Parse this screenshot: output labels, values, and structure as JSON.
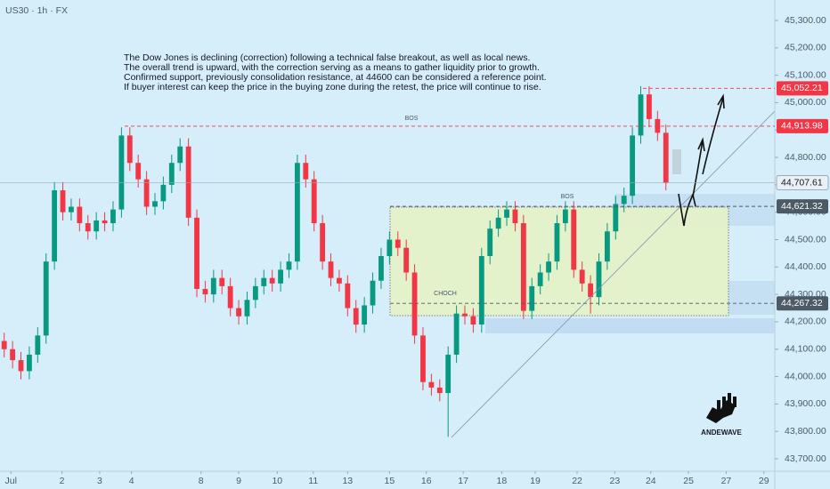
{
  "chart_data": {
    "type": "candlestick",
    "symbol": "US30 · 1h · FX",
    "annotation": [
      "The Dow Jones is declining (correction) following a technical false breakout, as well as local news.",
      "The overall trend is upward, with the correction serving as a means to gather liquidity prior to growth.",
      "Confirmed support, previously consolidation resistance, at 44600 can be considered a reference point.",
      "If buyer interest can keep the price in the buying zone during the retest, the price will continue to rise."
    ],
    "markers": [
      "BOS",
      "BOS",
      "CHOCH"
    ],
    "brand": "ANDEWAVE",
    "up_color": "#089981",
    "down_color": "#f23645",
    "x": [
      0,
      1,
      2,
      3,
      4,
      5,
      6,
      7,
      8,
      9,
      10,
      11,
      12,
      13,
      14,
      15,
      16,
      17,
      18,
      19,
      20,
      21,
      22,
      23,
      24,
      25,
      26,
      27,
      28,
      29,
      30,
      31,
      32,
      33,
      34,
      35,
      36,
      37,
      38,
      39,
      40,
      41,
      42,
      43,
      44,
      45,
      46,
      47,
      48,
      49,
      50,
      51,
      52,
      53,
      54,
      55,
      56,
      57,
      58,
      59,
      60,
      61,
      62,
      63,
      64,
      65,
      66,
      67,
      68,
      69,
      70,
      71,
      72,
      73,
      74,
      75,
      76,
      77,
      78,
      79
    ],
    "open": [
      44130,
      44100,
      44060,
      44020,
      44080,
      44150,
      44420,
      44680,
      44600,
      44620,
      44560,
      44530,
      44570,
      44560,
      44610,
      44880,
      44780,
      44720,
      44620,
      44640,
      44700,
      44780,
      44840,
      44580,
      44320,
      44300,
      44360,
      44330,
      44250,
      44220,
      44280,
      44330,
      44360,
      44340,
      44390,
      44420,
      44780,
      44720,
      44560,
      44420,
      44360,
      44340,
      44250,
      44190,
      44260,
      44350,
      44440,
      44500,
      44470,
      44380,
      44150,
      43980,
      43960,
      43940,
      44080,
      44230,
      44220,
      44190,
      44440,
      44540,
      44580,
      44610,
      44560,
      44240,
      44330,
      44380,
      44420,
      44560,
      44610,
      44390,
      44340,
      44290,
      44420,
      44530,
      44630,
      44660,
      44880,
      45030,
      44940,
      44890
    ],
    "high": [
      44160,
      44130,
      44090,
      44110,
      44180,
      44450,
      44710,
      44710,
      44650,
      44650,
      44590,
      44600,
      44600,
      44640,
      44910,
      44910,
      44810,
      44750,
      44670,
      44730,
      44810,
      44870,
      44870,
      44610,
      44350,
      44390,
      44390,
      44360,
      44280,
      44310,
      44360,
      44390,
      44390,
      44420,
      44450,
      44810,
      44810,
      44750,
      44590,
      44450,
      44390,
      44370,
      44280,
      44290,
      44380,
      44470,
      44530,
      44530,
      44500,
      44410,
      44180,
      44010,
      43990,
      44110,
      44260,
      44260,
      44250,
      44470,
      44570,
      44610,
      44640,
      44640,
      44590,
      44360,
      44410,
      44450,
      44590,
      44640,
      44640,
      44420,
      44370,
      44450,
      44560,
      44660,
      44690,
      44910,
      45060,
      45060,
      44970,
      44920
    ],
    "low": [
      44070,
      44030,
      43990,
      43990,
      44050,
      44120,
      44390,
      44570,
      44570,
      44530,
      44500,
      44500,
      44530,
      44530,
      44580,
      44750,
      44690,
      44590,
      44590,
      44610,
      44670,
      44750,
      44550,
      44290,
      44270,
      44270,
      44300,
      44220,
      44190,
      44190,
      44250,
      44300,
      44310,
      44310,
      44360,
      44390,
      44690,
      44530,
      44390,
      44330,
      44310,
      44220,
      44160,
      44160,
      44230,
      44320,
      44410,
      44440,
      44350,
      44120,
      43950,
      43930,
      43910,
      43780,
      44050,
      44190,
      44160,
      44160,
      44410,
      44510,
      44550,
      44530,
      44210,
      44210,
      44300,
      44350,
      44390,
      44530,
      44360,
      44310,
      44230,
      44260,
      44390,
      44500,
      44600,
      44630,
      44850,
      44910,
      44860,
      44680
    ],
    "close": [
      44100,
      44060,
      44020,
      44080,
      44150,
      44420,
      44680,
      44600,
      44620,
      44560,
      44530,
      44570,
      44560,
      44610,
      44880,
      44780,
      44720,
      44620,
      44640,
      44700,
      44780,
      44840,
      44580,
      44320,
      44300,
      44360,
      44330,
      44250,
      44220,
      44280,
      44330,
      44360,
      44340,
      44390,
      44420,
      44780,
      44720,
      44560,
      44420,
      44360,
      44340,
      44250,
      44190,
      44260,
      44350,
      44440,
      44500,
      44470,
      44380,
      44150,
      43980,
      43960,
      43940,
      44080,
      44230,
      44220,
      44190,
      44440,
      44540,
      44580,
      44610,
      44560,
      44240,
      44330,
      44380,
      44420,
      44560,
      44610,
      44390,
      44340,
      44290,
      44420,
      44530,
      44630,
      44660,
      44880,
      45030,
      44940,
      44890,
      44707.61
    ],
    "xlim": [
      -0.5,
      92
    ],
    "xticks": [
      {
        "value": 0.8,
        "label": "Jul"
      },
      {
        "value": 6.9,
        "label": "2"
      },
      {
        "value": 11.4,
        "label": "3"
      },
      {
        "value": 15.2,
        "label": "4"
      },
      {
        "value": 23.5,
        "label": "8"
      },
      {
        "value": 28.0,
        "label": "9"
      },
      {
        "value": 32.6,
        "label": "10"
      },
      {
        "value": 36.9,
        "label": "11"
      },
      {
        "value": 41.0,
        "label": "13"
      },
      {
        "value": 46.0,
        "label": "15"
      },
      {
        "value": 50.4,
        "label": "16"
      },
      {
        "value": 54.8,
        "label": "17"
      },
      {
        "value": 59.4,
        "label": "18"
      },
      {
        "value": 63.4,
        "label": "19"
      },
      {
        "value": 68.4,
        "label": "22"
      },
      {
        "value": 72.9,
        "label": "23"
      },
      {
        "value": 77.2,
        "label": "24"
      },
      {
        "value": 81.7,
        "label": "25"
      },
      {
        "value": 86.2,
        "label": "27"
      },
      {
        "value": 90.7,
        "label": "29"
      }
    ],
    "ylim": [
      43654.6,
      45374.6
    ],
    "yticks": [
      {
        "value": 43700,
        "label": "43,700.00"
      },
      {
        "value": 43800,
        "label": "43,800.00"
      },
      {
        "value": 43900,
        "label": "43,900.00"
      },
      {
        "value": 44000,
        "label": "44,000.00"
      },
      {
        "value": 44100,
        "label": "44,100.00"
      },
      {
        "value": 44200,
        "label": "44,200.00"
      },
      {
        "value": 44300,
        "label": "44,300.00"
      },
      {
        "value": 44400,
        "label": "44,400.00"
      },
      {
        "value": 44500,
        "label": "44,500.00"
      },
      {
        "value": 44600,
        "label": "44,600.00"
      },
      {
        "value": 44700,
        "label": "44,700.00"
      },
      {
        "value": 44800,
        "label": "44,800.00"
      },
      {
        "value": 44900,
        "label": "44,900.00"
      },
      {
        "value": 45000,
        "label": "45,000.00"
      },
      {
        "value": 45100,
        "label": "45,100.00"
      },
      {
        "value": 45200,
        "label": "45,200.00"
      },
      {
        "value": 45300,
        "label": "45,300.00"
      }
    ],
    "levels": [
      {
        "value": 45052.21,
        "label": "45,052.21",
        "color": "#f23645"
      },
      {
        "value": 44913.98,
        "label": "44,913.98",
        "color": "#f23645"
      },
      {
        "value": 44621.32,
        "label": "44,621.32",
        "color": "#4c5a66"
      },
      {
        "value": 44267.32,
        "label": "44,267.32",
        "color": "#4c5a66"
      }
    ],
    "last_price": {
      "value": 44707.61,
      "label": "44,707.61"
    }
  }
}
